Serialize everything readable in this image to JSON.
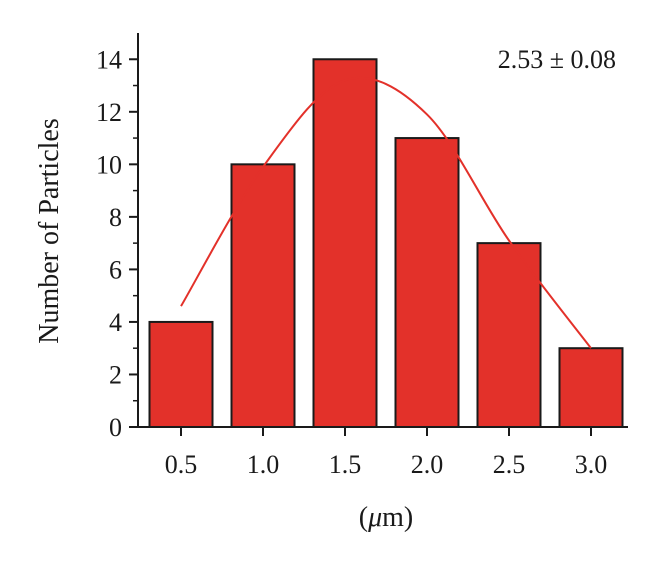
{
  "chart_data": {
    "type": "bar",
    "categories": [
      "0.5",
      "1.0",
      "1.5",
      "2.0",
      "2.5",
      "3.0"
    ],
    "values": [
      4,
      10,
      14,
      11,
      7,
      3
    ],
    "ylabel": "Number of Particles",
    "xlabel_prefix": "(",
    "xlabel_unit_italic": "μ",
    "xlabel_suffix": "m)",
    "annotation": "2.53 ± 0.08",
    "ylim": [
      0,
      15
    ],
    "yticks": [
      0,
      2,
      4,
      6,
      8,
      10,
      12,
      14
    ],
    "ytick_labels": [
      "0",
      "2",
      "4",
      "6",
      "8",
      "10",
      "12",
      "14"
    ],
    "fit_curve": {
      "type": "line",
      "x": [
        "0.5",
        "1.0",
        "1.5",
        "2.0",
        "2.5",
        "3.0"
      ],
      "y": [
        4.6,
        9.9,
        13.2,
        11.9,
        7.1,
        3.0
      ]
    },
    "colors": {
      "bar_fill": "#e3312a",
      "bar_stroke": "#1a1a1a",
      "fit_line": "#e3312a",
      "axis": "#1a1a1a"
    },
    "grid": false
  }
}
